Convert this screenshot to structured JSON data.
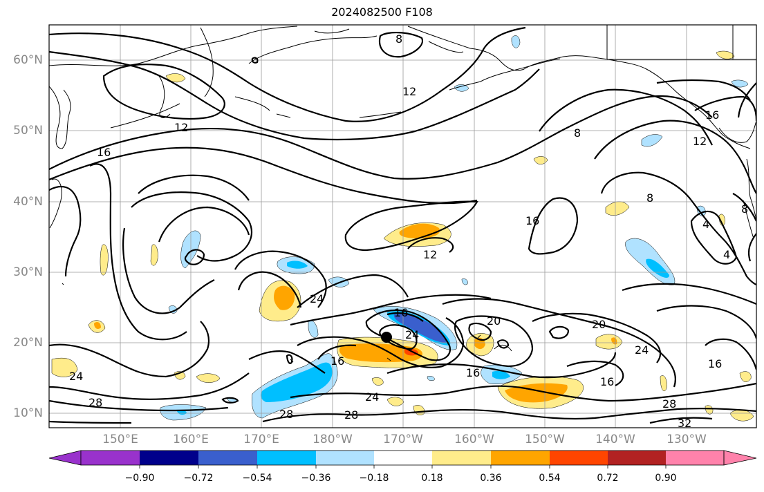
{
  "title": "2024082500 F108",
  "lat_ticks": [
    "60°N",
    "50°N",
    "40°N",
    "30°N",
    "20°N",
    "10°N"
  ],
  "lon_ticks": [
    "150°E",
    "160°E",
    "170°E",
    "180°W",
    "170°W",
    "160°W",
    "150°W",
    "140°W",
    "130°W"
  ],
  "contour_labels": [
    "8",
    "12",
    "12",
    "16",
    "8",
    "16",
    "12",
    "8",
    "16",
    "12",
    "8",
    "4",
    "4",
    "24",
    "16",
    "24",
    "20",
    "20",
    "24",
    "16",
    "16",
    "16",
    "24",
    "28",
    "28",
    "28",
    "24",
    "28",
    "32",
    "16"
  ],
  "colorbar": {
    "tick_labels": [
      "−0.90",
      "−0.72",
      "−0.54",
      "−0.36",
      "−0.18",
      "0.18",
      "0.36",
      "0.54",
      "0.72",
      "0.90"
    ],
    "colors": [
      "#9932cc",
      "#00008b",
      "#3a5fcd",
      "#00bfff",
      "#b0e2ff",
      "#ffffff",
      "#ffec8b",
      "#ffa500",
      "#ff4500",
      "#b22222",
      "#ff82ab"
    ],
    "extend": "both"
  },
  "marker": {
    "name": "storm-center-marker",
    "color": "#000000"
  }
}
